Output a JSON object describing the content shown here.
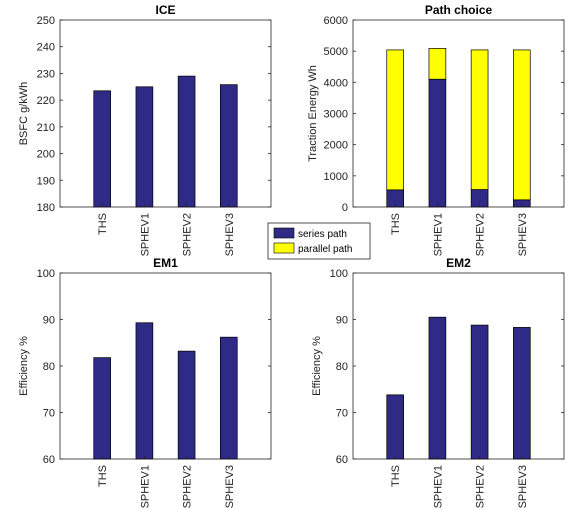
{
  "chart_data": [
    {
      "type": "bar",
      "title": "ICE",
      "ylabel": "BSFC g/kWh",
      "xlabel": "",
      "categories": [
        "THS",
        "SPHEV1",
        "SPHEV2",
        "SPHEV3"
      ],
      "values": [
        223.5,
        225,
        229,
        225.8
      ],
      "ylim": [
        180,
        250
      ],
      "yticks": [
        180,
        190,
        200,
        210,
        220,
        230,
        240,
        250
      ],
      "color": "#2e2a86"
    },
    {
      "type": "bar",
      "stacked": true,
      "title": "Path choice",
      "ylabel": "Traction Energy Wh",
      "xlabel": "",
      "categories": [
        "THS",
        "SPHEV1",
        "SPHEV2",
        "SPHEV3"
      ],
      "series": [
        {
          "name": "series path",
          "values": [
            550,
            4100,
            560,
            230
          ],
          "color": "#2e2a86"
        },
        {
          "name": "parallel path",
          "values": [
            4490,
            990,
            4480,
            4810
          ],
          "color": "#ffff00"
        }
      ],
      "ylim": [
        0,
        6000
      ],
      "yticks": [
        0,
        1000,
        2000,
        3000,
        4000,
        5000,
        6000
      ]
    },
    {
      "type": "bar",
      "title": "EM1",
      "ylabel": "Efficiency %",
      "xlabel": "",
      "categories": [
        "THS",
        "SPHEV1",
        "SPHEV2",
        "SPHEV3"
      ],
      "values": [
        81.8,
        89.3,
        83.2,
        86.2
      ],
      "ylim": [
        60,
        100
      ],
      "yticks": [
        60,
        70,
        80,
        90,
        100
      ],
      "color": "#2e2a86"
    },
    {
      "type": "bar",
      "title": "EM2",
      "ylabel": "Efficiency %",
      "xlabel": "",
      "categories": [
        "THS",
        "SPHEV1",
        "SPHEV2",
        "SPHEV3"
      ],
      "values": [
        73.8,
        90.5,
        88.8,
        88.3
      ],
      "ylim": [
        60,
        100
      ],
      "yticks": [
        60,
        70,
        80,
        90,
        100
      ],
      "color": "#2e2a86"
    }
  ],
  "legend": {
    "items": [
      {
        "label": "series path",
        "color": "#2e2a86"
      },
      {
        "label": "parallel path",
        "color": "#ffff00"
      }
    ]
  }
}
